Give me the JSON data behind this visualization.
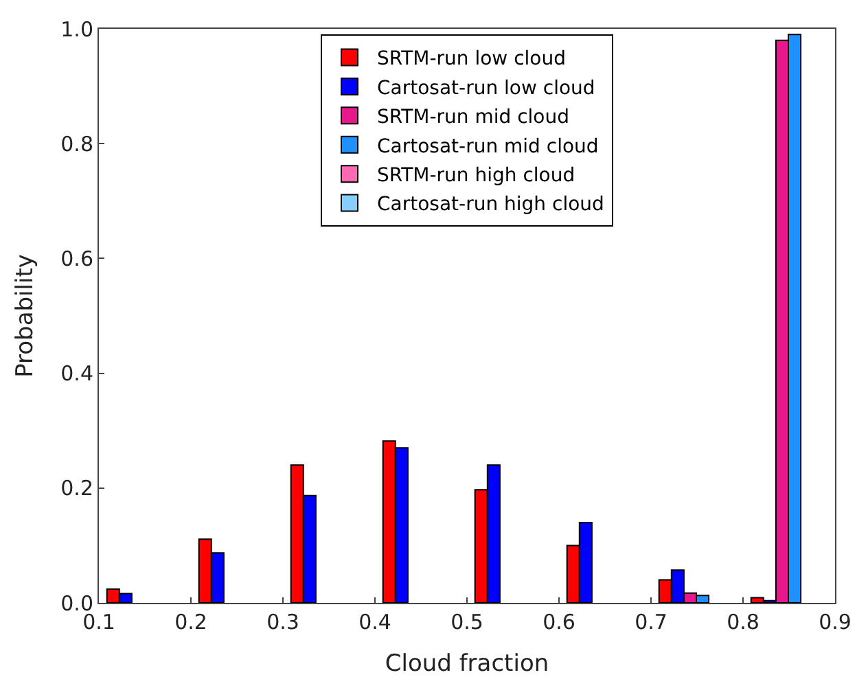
{
  "chart_data": {
    "type": "bar",
    "xlabel": "Cloud fraction",
    "ylabel": "Probability",
    "xlim": [
      0.1,
      0.9
    ],
    "xticks": [
      0.1,
      0.2,
      0.3,
      0.4,
      0.5,
      0.6,
      0.7,
      0.8,
      0.9
    ],
    "ylim": [
      0.0,
      1.0
    ],
    "yticks": [
      {
        "value": 0,
        "label": "0.0"
      },
      0.2,
      0.4,
      0.6,
      0.8,
      {
        "value": 1,
        "label": "1.0"
      }
    ],
    "legend": "top",
    "series": [
      {
        "name": "SRTM-run low cloud",
        "color": "#ff0000",
        "x": [
          0.1155,
          0.2155,
          0.3155,
          0.4155,
          0.5155,
          0.6155,
          0.7155,
          0.8155
        ],
        "values": [
          0.024,
          0.111,
          0.24,
          0.282,
          0.197,
          0.1,
          0.04,
          0.009
        ]
      },
      {
        "name": "Cartosat-run low cloud",
        "color": "#0000ff",
        "x": [
          0.129,
          0.229,
          0.329,
          0.429,
          0.529,
          0.629,
          0.729,
          0.829
        ],
        "values": [
          0.016,
          0.087,
          0.187,
          0.27,
          0.24,
          0.14,
          0.057,
          0.004
        ]
      },
      {
        "name": "SRTM-run mid cloud",
        "color": "#e8188c",
        "x": [
          0.7425,
          0.8425
        ],
        "values": [
          0.017,
          0.98
        ]
      },
      {
        "name": "Cartosat-run mid cloud",
        "color": "#1e90ff",
        "x": [
          0.756,
          0.856
        ],
        "values": [
          0.013,
          0.99
        ]
      },
      {
        "name": "SRTM-run high cloud",
        "color": "#ff69b4"
      },
      {
        "name": "Cartosat-run high cloud",
        "color": "#87cefa"
      }
    ]
  }
}
